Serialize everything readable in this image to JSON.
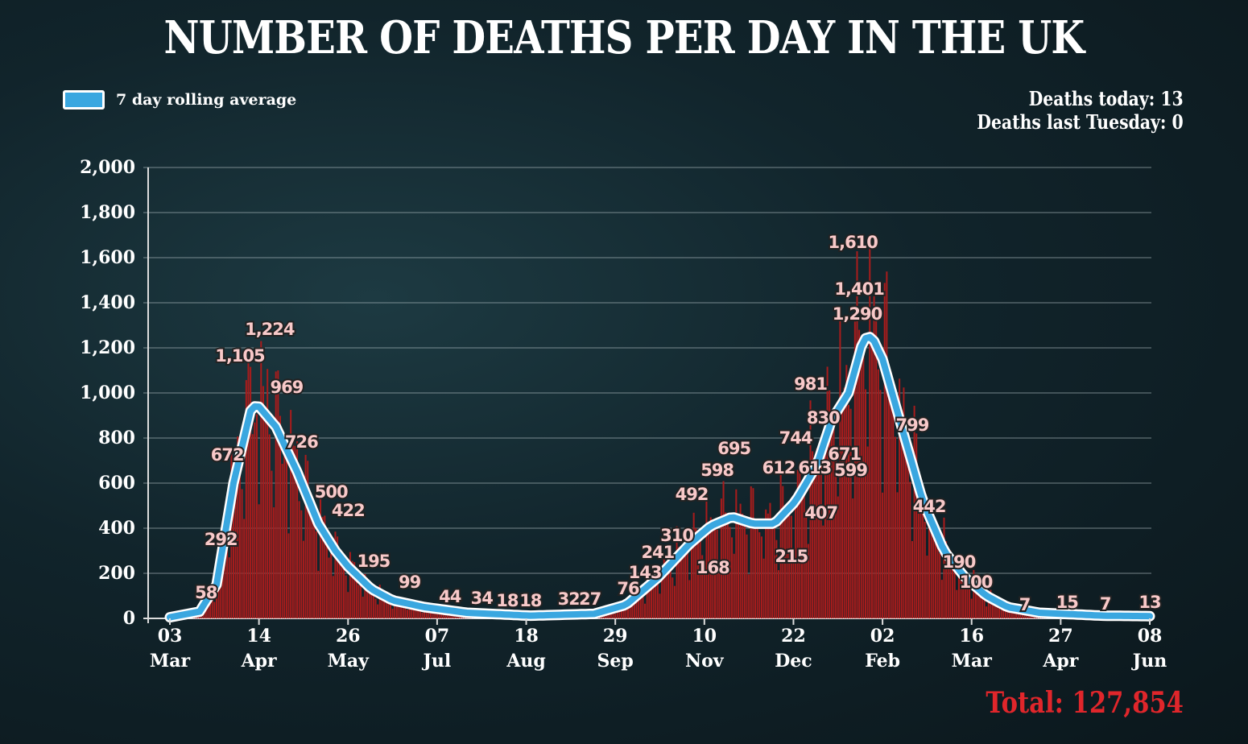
{
  "title": "NUMBER OF DEATHS PER DAY IN THE UK",
  "legend": {
    "label": "7 day rolling average"
  },
  "stats": {
    "today": "Deaths today: 13",
    "last_tuesday": "Deaths last Tuesday: 0"
  },
  "total": "Total: 127,854",
  "colors": {
    "bar": "#a81c1c",
    "line": "#3aa7e0",
    "line_outline": "#ffffff",
    "total": "#e0262b"
  },
  "chart_data": {
    "type": "bar",
    "title": "NUMBER OF DEATHS PER DAY IN THE UK",
    "xlabel": "",
    "ylabel": "",
    "ylim": [
      0,
      2000
    ],
    "xlim_days": [
      0,
      462
    ],
    "yticks": [
      "0",
      "200",
      "400",
      "600",
      "800",
      "1,000",
      "1,200",
      "1,400",
      "1,600",
      "1,800",
      "2,000"
    ],
    "ytick_values": [
      0,
      200,
      400,
      600,
      800,
      1000,
      1200,
      1400,
      1600,
      1800,
      2000
    ],
    "xticks": [
      {
        "day": 0,
        "d": "03",
        "m": "Mar"
      },
      {
        "day": 42,
        "d": "14",
        "m": "Apr"
      },
      {
        "day": 84,
        "d": "26",
        "m": "May"
      },
      {
        "day": 126,
        "d": "07",
        "m": "Jul"
      },
      {
        "day": 168,
        "d": "18",
        "m": "Aug"
      },
      {
        "day": 210,
        "d": "29",
        "m": "Sep"
      },
      {
        "day": 252,
        "d": "10",
        "m": "Nov"
      },
      {
        "day": 294,
        "d": "22",
        "m": "Dec"
      },
      {
        "day": 336,
        "d": "02",
        "m": "Feb"
      },
      {
        "day": 378,
        "d": "16",
        "m": "Mar"
      },
      {
        "day": 420,
        "d": "27",
        "m": "Apr"
      },
      {
        "day": 462,
        "d": "08",
        "m": "Jun"
      }
    ],
    "grid": true,
    "legend_position": "top-left",
    "rolling_average": [
      [
        0,
        5
      ],
      [
        14,
        30
      ],
      [
        22,
        150
      ],
      [
        30,
        600
      ],
      [
        38,
        920
      ],
      [
        41,
        950
      ],
      [
        50,
        850
      ],
      [
        60,
        650
      ],
      [
        70,
        420
      ],
      [
        78,
        300
      ],
      [
        84,
        230
      ],
      [
        95,
        130
      ],
      [
        105,
        80
      ],
      [
        120,
        50
      ],
      [
        140,
        25
      ],
      [
        170,
        12
      ],
      [
        200,
        20
      ],
      [
        215,
        60
      ],
      [
        230,
        180
      ],
      [
        245,
        330
      ],
      [
        255,
        410
      ],
      [
        265,
        450
      ],
      [
        275,
        420
      ],
      [
        285,
        420
      ],
      [
        295,
        520
      ],
      [
        305,
        680
      ],
      [
        312,
        880
      ],
      [
        320,
        1000
      ],
      [
        327,
        1240
      ],
      [
        331,
        1250
      ],
      [
        336,
        1150
      ],
      [
        345,
        850
      ],
      [
        355,
        520
      ],
      [
        365,
        300
      ],
      [
        375,
        180
      ],
      [
        385,
        100
      ],
      [
        395,
        50
      ],
      [
        410,
        25
      ],
      [
        440,
        12
      ],
      [
        462,
        10
      ]
    ],
    "annotations": [
      {
        "t": "58",
        "day": 17,
        "y": 118
      },
      {
        "t": "292",
        "day": 24,
        "y": 354
      },
      {
        "t": "672",
        "day": 27,
        "y": 729
      },
      {
        "t": "1,105",
        "day": 33,
        "y": 1168
      },
      {
        "t": "1,224",
        "day": 47,
        "y": 1286
      },
      {
        "t": "969",
        "day": 55,
        "y": 1029
      },
      {
        "t": "726",
        "day": 62,
        "y": 786
      },
      {
        "t": "500",
        "day": 76,
        "y": 564
      },
      {
        "t": "422",
        "day": 84,
        "y": 482
      },
      {
        "t": "195",
        "day": 96,
        "y": 257
      },
      {
        "t": "99",
        "day": 113,
        "y": 164
      },
      {
        "t": "44",
        "day": 132,
        "y": 100
      },
      {
        "t": "34",
        "day": 147,
        "y": 93
      },
      {
        "t": "18",
        "day": 159,
        "y": 82
      },
      {
        "t": "18",
        "day": 170,
        "y": 82
      },
      {
        "t": "32",
        "day": 188,
        "y": 89
      },
      {
        "t": "27",
        "day": 198,
        "y": 89
      },
      {
        "t": "76",
        "day": 216,
        "y": 136
      },
      {
        "t": "143",
        "day": 224,
        "y": 207
      },
      {
        "t": "241",
        "day": 230,
        "y": 296
      },
      {
        "t": "310",
        "day": 239,
        "y": 371
      },
      {
        "t": "492",
        "day": 246,
        "y": 554
      },
      {
        "t": "168",
        "day": 256,
        "y": 229
      },
      {
        "t": "598",
        "day": 258,
        "y": 661
      },
      {
        "t": "695",
        "day": 266,
        "y": 757
      },
      {
        "t": "612",
        "day": 287,
        "y": 671
      },
      {
        "t": "744",
        "day": 295,
        "y": 804
      },
      {
        "t": "215",
        "day": 293,
        "y": 279
      },
      {
        "t": "613",
        "day": 304,
        "y": 671
      },
      {
        "t": "407",
        "day": 307,
        "y": 471
      },
      {
        "t": "981",
        "day": 302,
        "y": 1043
      },
      {
        "t": "830",
        "day": 308,
        "y": 893
      },
      {
        "t": "671",
        "day": 318,
        "y": 732
      },
      {
        "t": "599",
        "day": 321,
        "y": 661
      },
      {
        "t": "1,610",
        "day": 322,
        "y": 1671
      },
      {
        "t": "1,401",
        "day": 325,
        "y": 1464
      },
      {
        "t": "1,290",
        "day": 324,
        "y": 1354
      },
      {
        "t": "799",
        "day": 350,
        "y": 861
      },
      {
        "t": "442",
        "day": 358,
        "y": 500
      },
      {
        "t": "190",
        "day": 372,
        "y": 254
      },
      {
        "t": "100",
        "day": 380,
        "y": 164
      },
      {
        "t": "7",
        "day": 403,
        "y": 64
      },
      {
        "t": "15",
        "day": 423,
        "y": 75
      },
      {
        "t": "7",
        "day": 441,
        "y": 68
      },
      {
        "t": "13",
        "day": 462,
        "y": 75
      }
    ]
  }
}
